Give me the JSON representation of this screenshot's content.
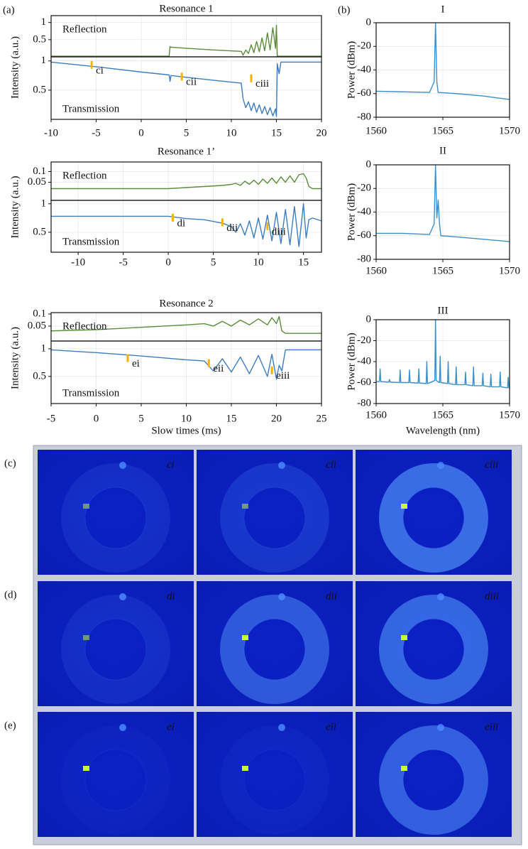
{
  "panel_labels": {
    "a": "(a)",
    "b": "(b)"
  },
  "chart_data": [
    {
      "type": "line",
      "title": "Resonance 1",
      "ylabel": "Intensity (a.u.)",
      "x": [
        -10,
        -5,
        0,
        3.1,
        3.2,
        3.3,
        5,
        8,
        11.1,
        11.3,
        11.6,
        11.9,
        12.2,
        12.5,
        12.8,
        13.1,
        13.4,
        13.7,
        14,
        14.3,
        14.6,
        14.9,
        15.0,
        15.1,
        15.3,
        15.5,
        16,
        20
      ],
      "xlim": [
        -10,
        20
      ],
      "xticks": [
        -10,
        -5,
        0,
        5,
        10,
        15,
        20
      ],
      "ylim": [
        0,
        1.07
      ],
      "yticks": [
        0.5,
        1
      ],
      "y2lim": [
        0,
        1.2
      ],
      "y2ticks": [
        0.5,
        1
      ],
      "grid": true,
      "series": [
        {
          "name": "Reflection",
          "color": "#5b8c3a",
          "axis": "y2",
          "values": [
            0.02,
            0.02,
            0.02,
            0.02,
            0.3,
            0.28,
            0.25,
            0.2,
            0.16,
            0.05,
            0.2,
            0.1,
            0.35,
            0.12,
            0.45,
            0.15,
            0.55,
            0.18,
            0.7,
            0.2,
            0.85,
            0.25,
            0.92,
            0.02,
            0.02,
            0.02,
            0.02,
            0.02
          ]
        },
        {
          "name": "Transmission",
          "color": "#3d7dbf",
          "values": [
            0.98,
            0.9,
            0.81,
            0.76,
            0.65,
            0.75,
            0.72,
            0.67,
            0.62,
            0.35,
            0.2,
            0.3,
            0.15,
            0.28,
            0.12,
            0.25,
            0.1,
            0.22,
            0.08,
            0.2,
            0.06,
            0.18,
            0.05,
            0.95,
            0.78,
            0.98,
            0.98,
            0.98
          ]
        }
      ],
      "annotations": [
        "ci",
        "cii",
        "ciii"
      ]
    },
    {
      "type": "line",
      "title": "Resonance 1’",
      "ylabel": "Intensity (a.u.)",
      "x": [
        -13,
        -5,
        0,
        2,
        4,
        6,
        7,
        7.5,
        8,
        8.5,
        9,
        9.5,
        10,
        10.5,
        11,
        11.5,
        12,
        12.5,
        13,
        13.5,
        14,
        14.5,
        15,
        15.3,
        15.6,
        16,
        17
      ],
      "xlim": [
        -13,
        17
      ],
      "xticks": [
        -10,
        -5,
        0,
        5,
        10,
        15
      ],
      "ylim": [
        0.15,
        1.06
      ],
      "yticks": [
        0.5,
        1
      ],
      "y2lim": [
        -0.035,
        0.145
      ],
      "y2ticks": [
        0.05,
        0.1
      ],
      "grid": true,
      "series": [
        {
          "name": "Reflection",
          "color": "#5b8c3a",
          "axis": "y2",
          "values": [
            0.02,
            0.02,
            0.02,
            0.025,
            0.03,
            0.035,
            0.04,
            0.045,
            0.035,
            0.055,
            0.04,
            0.06,
            0.04,
            0.065,
            0.045,
            0.07,
            0.045,
            0.075,
            0.05,
            0.08,
            0.05,
            0.085,
            0.09,
            0.07,
            0.03,
            0.02,
            0.02
          ]
        },
        {
          "name": "Transmission",
          "color": "#3d7dbf",
          "values": [
            0.78,
            0.78,
            0.78,
            0.74,
            0.72,
            0.66,
            0.6,
            0.5,
            0.65,
            0.45,
            0.7,
            0.4,
            0.75,
            0.38,
            0.8,
            0.35,
            0.85,
            0.3,
            0.9,
            0.28,
            0.95,
            0.25,
            1.0,
            0.4,
            0.72,
            0.75,
            0.7
          ]
        }
      ],
      "annotations": [
        "di",
        "dii",
        "diii"
      ]
    },
    {
      "type": "line",
      "title": "Resonance 2",
      "ylabel": "Intensity (a.u.)",
      "xlabel": "Slow times (ms)",
      "x": [
        -5,
        0,
        5,
        10,
        12,
        13,
        14,
        15,
        16,
        17,
        18,
        19,
        19.5,
        20,
        20.3,
        20.6,
        21,
        25
      ],
      "xlim": [
        -5,
        25
      ],
      "xticks": [
        -5,
        0,
        5,
        10,
        15,
        20,
        25
      ],
      "ylim": [
        0.01,
        1.14
      ],
      "yticks": [
        0.5,
        1
      ],
      "y2lim": [
        -0.012,
        0.106
      ],
      "y2ticks": [
        0.05,
        0.1
      ],
      "grid": true,
      "series": [
        {
          "name": "Reflection",
          "color": "#5b8c3a",
          "axis": "y2",
          "values": [
            0.03,
            0.035,
            0.045,
            0.055,
            0.06,
            0.05,
            0.07,
            0.05,
            0.075,
            0.055,
            0.08,
            0.055,
            0.085,
            0.06,
            0.09,
            0.03,
            0.02,
            0.02
          ]
        },
        {
          "name": "Transmission",
          "color": "#3d7dbf",
          "values": [
            0.98,
            0.93,
            0.87,
            0.8,
            0.78,
            0.6,
            0.82,
            0.58,
            0.85,
            0.55,
            0.88,
            0.5,
            0.9,
            0.45,
            0.7,
            0.6,
            0.98,
            0.98
          ]
        }
      ],
      "annotations": [
        "ei",
        "eii",
        "eiii"
      ]
    },
    {
      "type": "line",
      "title": "I",
      "ylabel": "Power (dBm)",
      "x": [
        1560,
        1562,
        1564,
        1564.35,
        1564.45,
        1564.55,
        1564.65,
        1566,
        1568,
        1570
      ],
      "xlim": [
        1560,
        1570
      ],
      "xticks": [
        1560,
        1565,
        1570
      ],
      "ylim": [
        -80,
        0
      ],
      "yticks": [
        -80,
        -60,
        -40,
        -20,
        0
      ],
      "grid": true,
      "series": [
        {
          "color": "#3d8fc9",
          "values": [
            -58,
            -58.5,
            -59,
            -50,
            0,
            -50,
            -59,
            -60,
            -62,
            -65
          ]
        }
      ]
    },
    {
      "type": "line",
      "title": "II",
      "ylabel": "Power (dBm)",
      "x": [
        1560,
        1562,
        1564,
        1564.35,
        1564.45,
        1564.55,
        1564.65,
        1564.75,
        1564.85,
        1566,
        1568,
        1570
      ],
      "xlim": [
        1560,
        1570
      ],
      "xticks": [
        1560,
        1565,
        1570
      ],
      "ylim": [
        -80,
        0
      ],
      "yticks": [
        -80,
        -60,
        -40,
        -20,
        0
      ],
      "grid": true,
      "series": [
        {
          "color": "#3d8fc9",
          "values": [
            -58,
            -58,
            -59,
            -50,
            0,
            -45,
            -30,
            -50,
            -60,
            -61,
            -63,
            -65
          ]
        }
      ]
    },
    {
      "type": "line",
      "title": "III",
      "ylabel": "Power (dBm)",
      "xlabel": "Wavelength (nm)",
      "x": [
        1560,
        1560.25,
        1560.3,
        1560.35,
        1560.95,
        1561,
        1561.05,
        1561.75,
        1561.8,
        1561.85,
        1562.45,
        1562.5,
        1562.55,
        1563.15,
        1563.2,
        1563.25,
        1563.75,
        1563.8,
        1563.85,
        1564.4,
        1564.45,
        1564.5,
        1564.75,
        1564.8,
        1564.85,
        1565.35,
        1565.4,
        1565.45,
        1565.95,
        1566,
        1566.05,
        1566.65,
        1566.7,
        1566.75,
        1567.25,
        1567.3,
        1567.35,
        1567.95,
        1568,
        1568.05,
        1568.55,
        1568.6,
        1568.65,
        1569.25,
        1569.3,
        1569.35,
        1569.85,
        1569.9,
        1569.95,
        1570
      ],
      "xlim": [
        1560,
        1570
      ],
      "xticks": [
        1560,
        1565,
        1570
      ],
      "ylim": [
        -80,
        0
      ],
      "yticks": [
        -80,
        -60,
        -40,
        -20,
        0
      ],
      "grid": true,
      "series": [
        {
          "color": "#3d8fc9",
          "values": [
            -59,
            -59,
            -47,
            -59,
            -59.5,
            -57,
            -59.5,
            -60,
            -48,
            -60,
            -60,
            -48,
            -60,
            -60.5,
            -47,
            -60.5,
            -61,
            -40,
            -61,
            -58,
            0,
            -58,
            -60,
            -35,
            -60,
            -61,
            -40,
            -61,
            -62,
            -45,
            -62,
            -62,
            -50,
            -62,
            -63,
            -45,
            -63,
            -63,
            -51,
            -63,
            -64,
            -52,
            -64,
            -64,
            -50,
            -64,
            -65,
            -55,
            -65,
            -65
          ]
        }
      ]
    }
  ],
  "images": {
    "rows": [
      {
        "label": "(c)",
        "panels": [
          "ci",
          "cii",
          "ciii"
        ]
      },
      {
        "label": "(d)",
        "panels": [
          "di",
          "dii",
          "diii"
        ]
      },
      {
        "label": "(e)",
        "panels": [
          "ei",
          "eii",
          "eiii"
        ]
      }
    ]
  }
}
